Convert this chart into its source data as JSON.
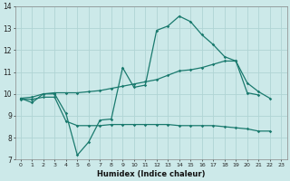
{
  "xlabel": "Humidex (Indice chaleur)",
  "xlim": [
    -0.5,
    23.5
  ],
  "ylim": [
    7,
    14
  ],
  "yticks": [
    7,
    8,
    9,
    10,
    11,
    12,
    13,
    14
  ],
  "xticks": [
    0,
    1,
    2,
    3,
    4,
    5,
    6,
    7,
    8,
    9,
    10,
    11,
    12,
    13,
    14,
    15,
    16,
    17,
    18,
    19,
    20,
    21,
    22,
    23
  ],
  "bg_color": "#cce9e9",
  "grid_color": "#b0d4d4",
  "line_color": "#1a7a6e",
  "line1_x": [
    0,
    1,
    2,
    3,
    4,
    5,
    6,
    7,
    8,
    9,
    10,
    11,
    12,
    13,
    14,
    15,
    16,
    17,
    18,
    19,
    20,
    21,
    22
  ],
  "line1_y": [
    9.8,
    9.6,
    10.0,
    10.0,
    9.1,
    7.2,
    7.8,
    8.8,
    8.85,
    11.2,
    10.3,
    10.4,
    12.9,
    13.1,
    13.55,
    13.3,
    12.7,
    12.25,
    11.7,
    11.5,
    10.5,
    10.1,
    9.8
  ],
  "line2_x": [
    0,
    1,
    2,
    3,
    4,
    5,
    6,
    7,
    8,
    9,
    10,
    11,
    12,
    13,
    14,
    15,
    16,
    17,
    18,
    19,
    20,
    21
  ],
  "line2_y": [
    9.8,
    9.85,
    10.0,
    10.05,
    10.05,
    10.05,
    10.1,
    10.15,
    10.25,
    10.35,
    10.45,
    10.55,
    10.65,
    10.85,
    11.05,
    11.1,
    11.2,
    11.35,
    11.5,
    11.5,
    10.05,
    9.95
  ],
  "line3_x": [
    0,
    1,
    2,
    3,
    4,
    5,
    6,
    7,
    8,
    9,
    10,
    11,
    12,
    13,
    14,
    15,
    16,
    17,
    18,
    19,
    20,
    21,
    22
  ],
  "line3_y": [
    9.75,
    9.75,
    9.85,
    9.85,
    8.75,
    8.55,
    8.55,
    8.55,
    8.6,
    8.6,
    8.6,
    8.6,
    8.6,
    8.6,
    8.55,
    8.55,
    8.55,
    8.55,
    8.5,
    8.45,
    8.4,
    8.3,
    8.3
  ]
}
